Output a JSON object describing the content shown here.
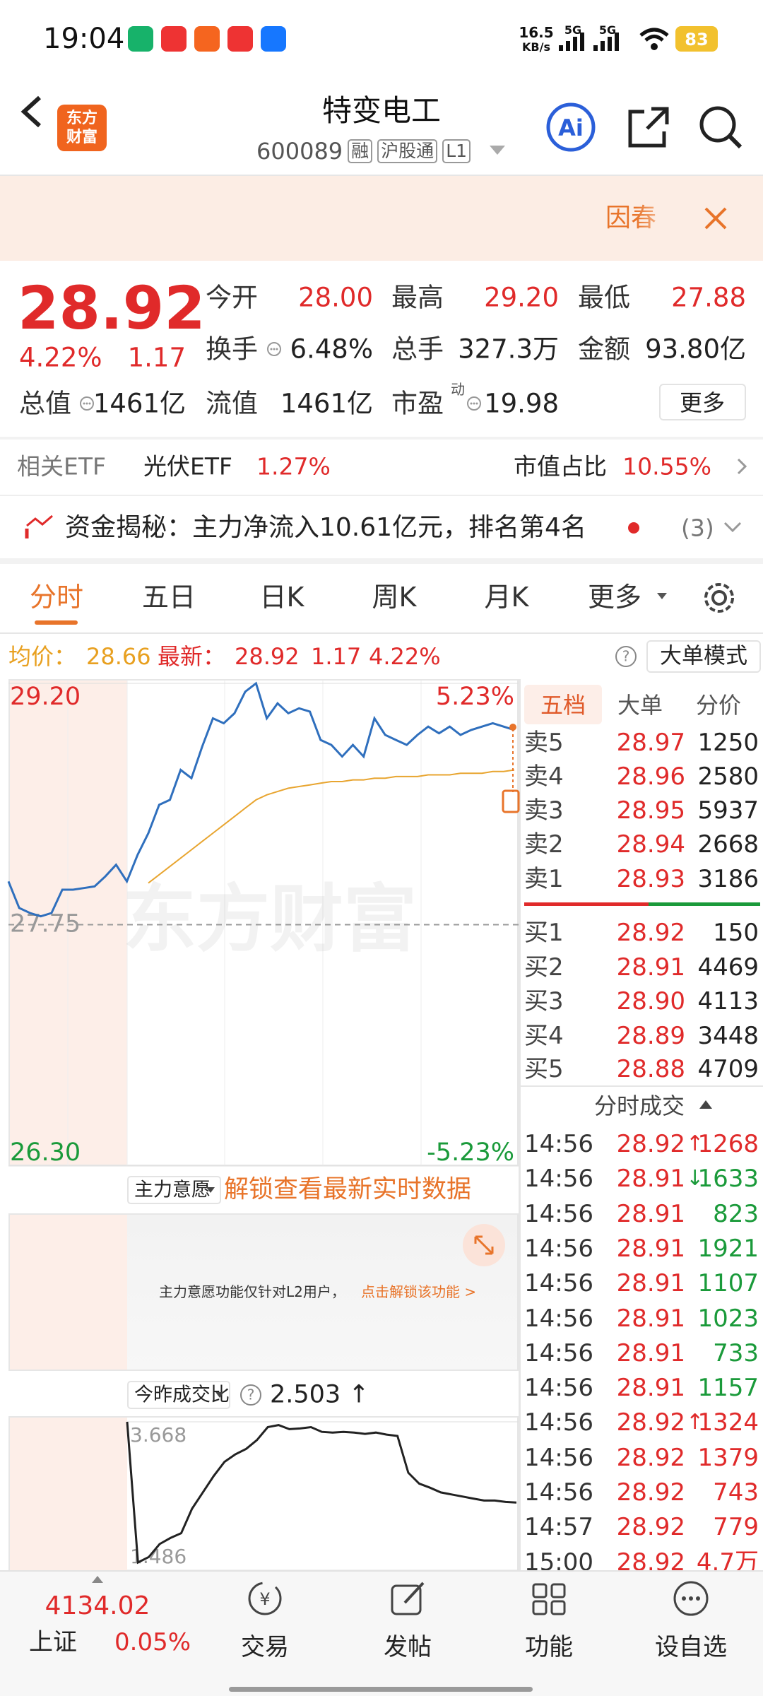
{
  "status_bar": {
    "time": "19:04",
    "speed": "16.5",
    "speed_unit": "KB/s",
    "network": [
      "5G",
      "5G"
    ],
    "battery": "83"
  },
  "header": {
    "logo": [
      "东方",
      "财富"
    ],
    "title": "特变电工",
    "code": "600089",
    "tags": [
      "融",
      "沪股通",
      "L1"
    ],
    "ai": "Ai"
  },
  "banner": {
    "text": "因春"
  },
  "quote": {
    "price": "28.92",
    "change_pct": "4.22%",
    "change": "1.17",
    "fields": [
      {
        "label": "今开",
        "value": "28.00"
      },
      {
        "label": "最高",
        "value": "29.20"
      },
      {
        "label": "最低",
        "value": "27.88"
      },
      {
        "label": "换手",
        "value": "6.48%"
      },
      {
        "label": "总手",
        "value": "327.3万"
      },
      {
        "label": "金额",
        "value": "93.80亿"
      },
      {
        "label": "总值",
        "value": "1461亿"
      },
      {
        "label": "流值",
        "value": "1461亿"
      },
      {
        "label": "市盈",
        "sup": "动",
        "value": "19.98"
      }
    ],
    "more": "更多"
  },
  "etf": {
    "label": "相关ETF",
    "name": "光伏ETF",
    "change": "1.27%",
    "share_label": "市值占比",
    "share": "10.55%"
  },
  "fund_flow": {
    "text": "资金揭秘：主力净流入10.61亿元，排名第4名",
    "count": "(3)"
  },
  "tabs": [
    "分时",
    "五日",
    "日K",
    "周K",
    "月K",
    "更多"
  ],
  "info": {
    "avg_label": "均价：",
    "avg": "28.66",
    "last_label": "最新：",
    "last": "28.92",
    "change": "1.17",
    "change_pct": "4.22%",
    "mode": "大单模式"
  },
  "watermark": "东方财富",
  "chart_data": [
    {
      "type": "line",
      "ylim": [
        26.3,
        29.2
      ],
      "yticks": [
        {
          "value": 29.2,
          "label": "29.20"
        },
        {
          "value": 27.75,
          "label": "27.75"
        },
        {
          "value": 26.3,
          "label": "26.30"
        }
      ],
      "y2lim": [
        -5.23,
        5.23
      ],
      "y2ticks": [
        {
          "value": 5.23,
          "label": "5.23%"
        },
        {
          "value": -5.23,
          "label": "-5.23%"
        }
      ],
      "series": [
        {
          "color": "#2f6fbd",
          "values": [
            28.01,
            27.85,
            27.82,
            27.8,
            27.82,
            27.96,
            27.96,
            27.97,
            27.98,
            28.04,
            28.11,
            28.01,
            28.17,
            28.3,
            28.47,
            28.5,
            28.68,
            28.63,
            28.82,
            28.99,
            28.96,
            29.02,
            29.15,
            29.2,
            28.99,
            29.08,
            29.02,
            29.05,
            29.03,
            28.86,
            28.83,
            28.76,
            28.83,
            28.76,
            28.99,
            28.89,
            28.86,
            28.83,
            28.89,
            28.94,
            28.9,
            28.94,
            28.89,
            28.92,
            28.94,
            28.96,
            28.94,
            28.92
          ]
        },
        {
          "color": "#e8a530",
          "values": [
            null,
            null,
            null,
            null,
            null,
            null,
            null,
            null,
            null,
            null,
            null,
            null,
            null,
            28.0,
            28.05,
            28.1,
            28.15,
            28.2,
            28.25,
            28.3,
            28.35,
            28.4,
            28.45,
            28.5,
            28.53,
            28.55,
            28.57,
            28.58,
            28.59,
            28.6,
            28.61,
            28.61,
            28.62,
            28.62,
            28.63,
            28.63,
            28.64,
            28.64,
            28.64,
            28.65,
            28.65,
            28.65,
            28.66,
            28.66,
            28.66,
            28.67,
            28.67,
            28.68
          ]
        }
      ]
    },
    {
      "type": "line",
      "ylim": [
        1.486,
        3.668
      ],
      "yticks": [
        3.668,
        1.486
      ],
      "series": [
        {
          "color": "#222222",
          "values": [
            3.668,
            1.6,
            1.68,
            1.87,
            1.96,
            2.03,
            2.39,
            2.63,
            2.87,
            3.08,
            3.19,
            3.27,
            3.4,
            3.59,
            3.62,
            3.56,
            3.57,
            3.59,
            3.52,
            3.51,
            3.52,
            3.51,
            3.49,
            3.51,
            3.48,
            3.46,
            2.92,
            2.76,
            2.7,
            2.63,
            2.6,
            2.57,
            2.54,
            2.51,
            2.51,
            2.49,
            2.48
          ]
        }
      ]
    }
  ],
  "main_intent": {
    "selector": "主力意愿",
    "unlock": "解锁查看最新实时数据",
    "notice": "主力意愿功能仅针对L2用户，",
    "link": "点击解锁该功能 >"
  },
  "volume_ratio": {
    "selector": "今昨成交比",
    "value": "2.503 ↑"
  },
  "order_book": {
    "tabs": [
      "五档",
      "大单",
      "分价"
    ],
    "asks": [
      {
        "label": "卖5",
        "price": "28.97",
        "volume": "1250"
      },
      {
        "label": "卖4",
        "price": "28.96",
        "volume": "2580"
      },
      {
        "label": "卖3",
        "price": "28.95",
        "volume": "5937"
      },
      {
        "label": "卖2",
        "price": "28.94",
        "volume": "2668"
      },
      {
        "label": "卖1",
        "price": "28.93",
        "volume": "3186"
      }
    ],
    "bids": [
      {
        "label": "买1",
        "price": "28.92",
        "volume": "150"
      },
      {
        "label": "买2",
        "price": "28.91",
        "volume": "4469"
      },
      {
        "label": "买3",
        "price": "28.90",
        "volume": "4113"
      },
      {
        "label": "买4",
        "price": "28.89",
        "volume": "3448"
      },
      {
        "label": "买5",
        "price": "28.88",
        "volume": "4709"
      }
    ]
  },
  "trades": {
    "title": "分时成交",
    "rows": [
      {
        "time": "14:56",
        "price": "28.92",
        "arrow": "↑",
        "volume": "1268",
        "color": "#e02a2a"
      },
      {
        "time": "14:56",
        "price": "28.91",
        "arrow": "↓",
        "volume": "1633",
        "color": "#1a9a3a"
      },
      {
        "time": "14:56",
        "price": "28.91",
        "volume": "823",
        "color": "#1a9a3a"
      },
      {
        "time": "14:56",
        "price": "28.91",
        "volume": "1921",
        "color": "#1a9a3a"
      },
      {
        "time": "14:56",
        "price": "28.91",
        "volume": "1107",
        "color": "#1a9a3a"
      },
      {
        "time": "14:56",
        "price": "28.91",
        "volume": "1023",
        "color": "#1a9a3a"
      },
      {
        "time": "14:56",
        "price": "28.91",
        "volume": "733",
        "color": "#1a9a3a"
      },
      {
        "time": "14:56",
        "price": "28.91",
        "volume": "1157",
        "color": "#1a9a3a"
      },
      {
        "time": "14:56",
        "price": "28.92",
        "arrow": "↑",
        "volume": "1324",
        "color": "#e02a2a"
      },
      {
        "time": "14:56",
        "price": "28.92",
        "volume": "1379",
        "color": "#e02a2a"
      },
      {
        "time": "14:56",
        "price": "28.92",
        "volume": "743",
        "color": "#e02a2a"
      },
      {
        "time": "14:57",
        "price": "28.92",
        "volume": "779",
        "color": "#e02a2a"
      },
      {
        "time": "15:00",
        "price": "28.92",
        "volume": "4.7万",
        "color": "#e02a2a"
      }
    ]
  },
  "bottom_nav": {
    "index_value": "4134.02",
    "index_name": "上证",
    "index_change": "0.05%",
    "items": [
      "交易",
      "发帖",
      "功能",
      "设自选"
    ]
  }
}
